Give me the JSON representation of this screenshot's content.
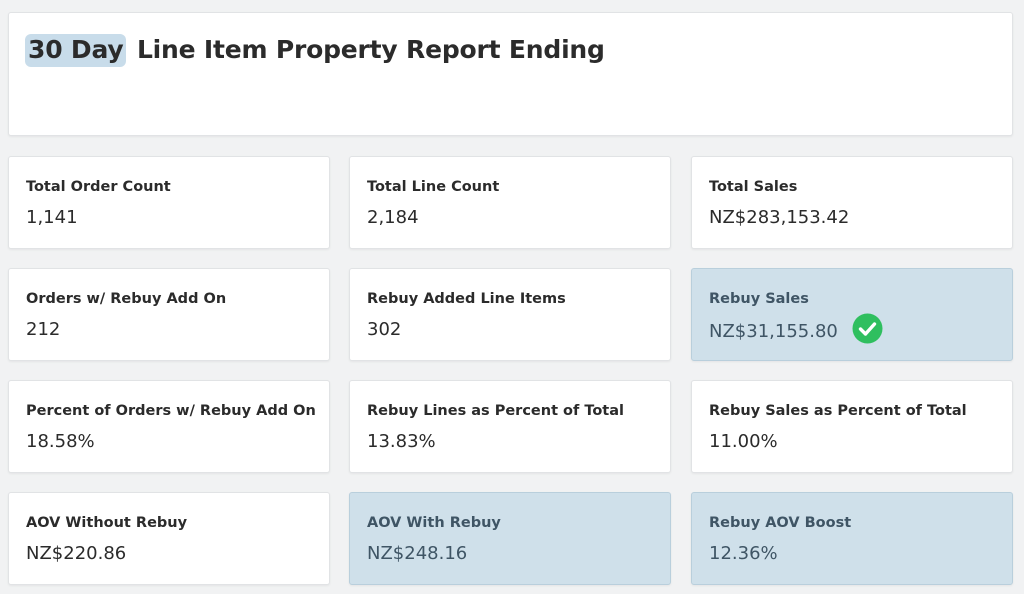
{
  "report": {
    "title_highlight": "30 Day",
    "title_rest": " Line Item Property Report Ending"
  },
  "metrics": [
    {
      "label": "Total Order Count",
      "value": "1,141",
      "highlight": false
    },
    {
      "label": "Total Line Count",
      "value": "2,184",
      "highlight": false
    },
    {
      "label": "Total Sales",
      "value": "NZ$283,153.42",
      "highlight": false
    },
    {
      "label": "Orders w/ Rebuy Add On",
      "value": "212",
      "highlight": false
    },
    {
      "label": "Rebuy Added Line Items",
      "value": "302",
      "highlight": false
    },
    {
      "label": "Rebuy Sales",
      "value": "NZ$31,155.80",
      "highlight": true,
      "icon": "check-circle-icon"
    },
    {
      "label": "Percent of Orders w/ Rebuy Add On",
      "value": "18.58%",
      "highlight": false
    },
    {
      "label": "Rebuy Lines as Percent of Total",
      "value": "13.83%",
      "highlight": false
    },
    {
      "label": "Rebuy Sales as Percent of Total",
      "value": "11.00%",
      "highlight": false
    },
    {
      "label": "AOV Without Rebuy",
      "value": "NZ$220.86",
      "highlight": false
    },
    {
      "label": "AOV With Rebuy",
      "value": "NZ$248.16",
      "highlight": true
    },
    {
      "label": "Rebuy AOV Boost",
      "value": "12.36%",
      "highlight": true
    }
  ],
  "colors": {
    "highlight_bg": "#cfe0ea",
    "title_highlight_bg": "#c8dcea",
    "check_green": "#2fbf5f"
  }
}
